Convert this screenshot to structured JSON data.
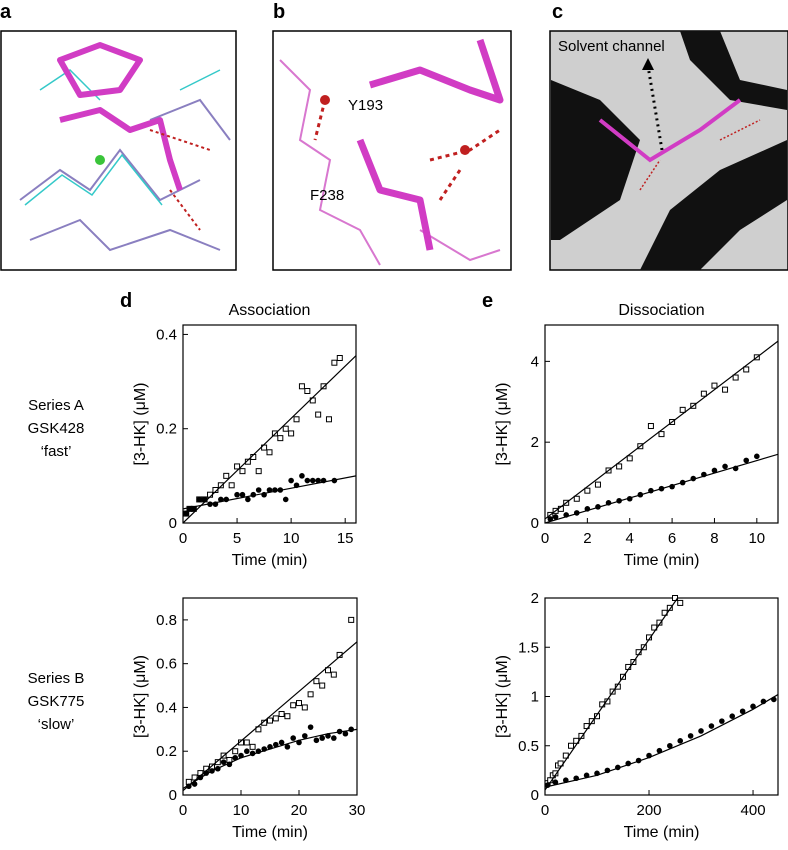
{
  "panel_labels": [
    "a",
    "b",
    "c",
    "d",
    "e"
  ],
  "structure_labels": {
    "b": [
      "Y193",
      "F238"
    ],
    "c": "Solvent channel"
  },
  "row_labels": [
    [
      "Series  A",
      "GSK428",
      "‘fast’"
    ],
    [
      "Series B",
      "GSK775",
      "‘slow’"
    ]
  ],
  "chart_data": [
    {
      "type": "scatter",
      "title": "Association",
      "xlabel": "Time (min)",
      "ylabel": "[3-HK] (μM)",
      "xlim": [
        0,
        16
      ],
      "ylim": [
        0,
        0.42
      ],
      "xticks": [
        0,
        5,
        10,
        15
      ],
      "yticks": [
        0,
        0.2,
        0.4
      ],
      "series": [
        {
          "marker": "square",
          "color": "#000000",
          "x": [
            0.3,
            0.6,
            1,
            1.5,
            2,
            2.5,
            3,
            3.5,
            4,
            4.5,
            5,
            5.5,
            6,
            6.5,
            7,
            7.5,
            8,
            8.5,
            9,
            9.5,
            10,
            10.5,
            11,
            11.5,
            12,
            12.5,
            13,
            13.5,
            14,
            14.5
          ],
          "values": [
            0.02,
            0.03,
            0.03,
            0.05,
            0.05,
            0.06,
            0.07,
            0.08,
            0.1,
            0.08,
            0.12,
            0.11,
            0.13,
            0.14,
            0.11,
            0.16,
            0.15,
            0.19,
            0.18,
            0.2,
            0.19,
            0.22,
            0.29,
            0.28,
            0.26,
            0.23,
            0.29,
            0.22,
            0.34,
            0.35
          ]
        },
        {
          "marker": "circle",
          "color": "#000000",
          "x": [
            0.3,
            0.6,
            1,
            1.5,
            2,
            2.5,
            3,
            3.5,
            4,
            5,
            5.5,
            6,
            6.5,
            7,
            7.5,
            8,
            8.5,
            9,
            9.5,
            10,
            10.5,
            11,
            11.5,
            12,
            12.5,
            13,
            14
          ],
          "values": [
            0.02,
            0.03,
            0.03,
            0.05,
            0.05,
            0.04,
            0.04,
            0.05,
            0.05,
            0.06,
            0.06,
            0.05,
            0.06,
            0.07,
            0.06,
            0.07,
            0.07,
            0.07,
            0.05,
            0.09,
            0.08,
            0.1,
            0.09,
            0.09,
            0.09,
            0.09,
            0.09
          ]
        },
        {
          "marker": "line",
          "color": "#000000",
          "x": [
            0,
            16
          ],
          "values": [
            0,
            0.355
          ]
        },
        {
          "marker": "line",
          "color": "#000000",
          "x": [
            0,
            16
          ],
          "values": [
            0.03,
            0.1
          ]
        }
      ]
    },
    {
      "type": "scatter",
      "title": "Dissociation",
      "xlabel": "Time (min)",
      "ylabel": "[3-HK] (μM)",
      "xlim": [
        0,
        11
      ],
      "ylim": [
        0,
        4.9
      ],
      "xticks": [
        0,
        2,
        4,
        6,
        8,
        10
      ],
      "yticks": [
        0,
        2,
        4
      ],
      "series": [
        {
          "marker": "square",
          "color": "#000000",
          "x": [
            0.25,
            0.5,
            0.75,
            1,
            1.5,
            2,
            2.5,
            3,
            3.5,
            4,
            4.5,
            5,
            5.5,
            6,
            6.5,
            7,
            7.5,
            8,
            8.5,
            9,
            9.5,
            10
          ],
          "values": [
            0.2,
            0.3,
            0.35,
            0.5,
            0.6,
            0.8,
            0.95,
            1.3,
            1.4,
            1.6,
            1.9,
            2.4,
            2.2,
            2.5,
            2.8,
            2.9,
            3.2,
            3.4,
            3.3,
            3.6,
            3.8,
            4.1
          ]
        },
        {
          "marker": "circle",
          "color": "#000000",
          "x": [
            0.25,
            0.5,
            1,
            1.5,
            2,
            2.5,
            3,
            3.5,
            4,
            4.5,
            5,
            5.5,
            6,
            6.5,
            7,
            7.5,
            8,
            8.5,
            9,
            9.5,
            10
          ],
          "values": [
            0.1,
            0.15,
            0.2,
            0.25,
            0.35,
            0.4,
            0.5,
            0.55,
            0.6,
            0.7,
            0.8,
            0.85,
            0.9,
            1.0,
            1.1,
            1.2,
            1.3,
            1.4,
            1.35,
            1.55,
            1.65
          ]
        },
        {
          "marker": "line",
          "color": "#000000",
          "x": [
            0,
            11
          ],
          "values": [
            0.1,
            4.5
          ]
        },
        {
          "marker": "line",
          "color": "#000000",
          "x": [
            0,
            11
          ],
          "values": [
            0,
            1.7
          ]
        }
      ]
    },
    {
      "type": "scatter",
      "xlabel": "Time (min)",
      "ylabel": "[3-HK] (μM)",
      "xlim": [
        0,
        30
      ],
      "ylim": [
        0,
        0.9
      ],
      "xticks": [
        0,
        10,
        20,
        30
      ],
      "yticks": [
        0,
        0.2,
        0.4,
        0.6,
        0.8
      ],
      "series": [
        {
          "marker": "square",
          "color": "#000000",
          "x": [
            1,
            2,
            3,
            4,
            5,
            6,
            7,
            8,
            9,
            10,
            11,
            12,
            13,
            14,
            15,
            16,
            17,
            18,
            19,
            20,
            21,
            22,
            23,
            24,
            25,
            26,
            27,
            29
          ],
          "values": [
            0.06,
            0.08,
            0.1,
            0.12,
            0.13,
            0.15,
            0.18,
            0.16,
            0.2,
            0.24,
            0.24,
            0.22,
            0.3,
            0.33,
            0.34,
            0.35,
            0.37,
            0.36,
            0.41,
            0.42,
            0.4,
            0.46,
            0.52,
            0.5,
            0.57,
            0.55,
            0.64,
            0.8
          ]
        },
        {
          "marker": "circle",
          "color": "#000000",
          "x": [
            1,
            2,
            3,
            4,
            5,
            6,
            7,
            8,
            9,
            10,
            11,
            12,
            13,
            14,
            15,
            16,
            17,
            18,
            19,
            20,
            21,
            22,
            23,
            24,
            25,
            26,
            27,
            28,
            29
          ],
          "values": [
            0.04,
            0.05,
            0.08,
            0.1,
            0.11,
            0.12,
            0.15,
            0.14,
            0.17,
            0.18,
            0.2,
            0.19,
            0.2,
            0.21,
            0.22,
            0.23,
            0.24,
            0.22,
            0.26,
            0.24,
            0.27,
            0.31,
            0.25,
            0.26,
            0.27,
            0.26,
            0.29,
            0.28,
            0.3
          ]
        },
        {
          "marker": "line",
          "color": "#000000",
          "x": [
            0,
            30
          ],
          "values": [
            0.02,
            0.7
          ]
        },
        {
          "marker": "line",
          "color": "#000000",
          "x": [
            0,
            5,
            10,
            15,
            20,
            25,
            30
          ],
          "values": [
            0.03,
            0.11,
            0.17,
            0.21,
            0.25,
            0.28,
            0.3
          ]
        }
      ]
    },
    {
      "type": "scatter",
      "xlabel": "Time (min)",
      "ylabel": "[3-HK] (μM)",
      "xlim": [
        0,
        448
      ],
      "ylim": [
        0,
        2
      ],
      "xticks": [
        0,
        200,
        400
      ],
      "yticks": [
        0,
        0.5,
        1,
        1.5,
        2
      ],
      "series": [
        {
          "marker": "square",
          "color": "#000000",
          "x": [
            5,
            10,
            15,
            20,
            25,
            30,
            40,
            50,
            60,
            70,
            80,
            90,
            100,
            110,
            120,
            130,
            140,
            150,
            160,
            170,
            180,
            190,
            200,
            210,
            220,
            230,
            240,
            250,
            260
          ],
          "values": [
            0.12,
            0.15,
            0.2,
            0.22,
            0.3,
            0.32,
            0.4,
            0.5,
            0.55,
            0.6,
            0.7,
            0.75,
            0.8,
            0.92,
            0.95,
            1.05,
            1.1,
            1.2,
            1.3,
            1.35,
            1.45,
            1.5,
            1.6,
            1.7,
            1.75,
            1.85,
            1.9,
            2.0,
            1.95
          ]
        },
        {
          "marker": "circle",
          "color": "#000000",
          "x": [
            5,
            20,
            40,
            60,
            80,
            100,
            120,
            140,
            160,
            180,
            200,
            220,
            240,
            260,
            280,
            300,
            320,
            340,
            360,
            380,
            400,
            420,
            440
          ],
          "values": [
            0.1,
            0.13,
            0.15,
            0.17,
            0.2,
            0.22,
            0.25,
            0.28,
            0.32,
            0.35,
            0.4,
            0.45,
            0.5,
            0.55,
            0.6,
            0.65,
            0.7,
            0.75,
            0.8,
            0.85,
            0.9,
            0.95,
            0.97
          ]
        },
        {
          "marker": "line",
          "color": "#000000",
          "x": [
            0,
            255
          ],
          "values": [
            0.05,
            2
          ]
        },
        {
          "marker": "line",
          "color": "#000000",
          "x": [
            0,
            100,
            200,
            300,
            400,
            448
          ],
          "values": [
            0.08,
            0.2,
            0.38,
            0.6,
            0.87,
            1.02
          ]
        }
      ]
    }
  ]
}
